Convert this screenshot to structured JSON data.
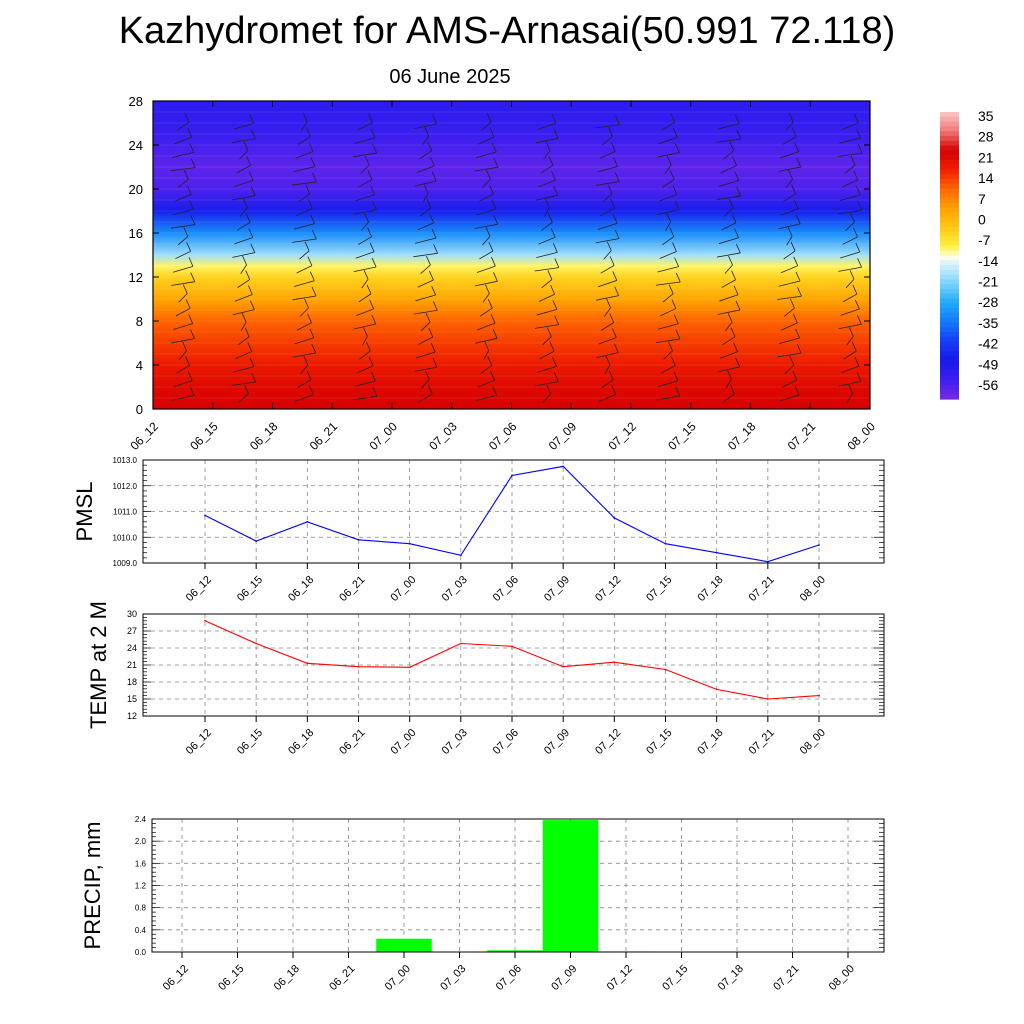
{
  "title": "Kazhydromet for AMS-Arnasai(50.991 72.118)",
  "subtitle": "06 June 2025",
  "time_labels": [
    "06_12",
    "06_15",
    "06_18",
    "06_21",
    "07_00",
    "07_03",
    "07_06",
    "07_09",
    "07_12",
    "07_15",
    "07_18",
    "07_21",
    "08_00"
  ],
  "colors": {
    "pmsl_line": "#0000ff",
    "temp_line": "#ff0000",
    "precip_bar": "#00ff00",
    "frame": "#000000",
    "grid": "#888888"
  },
  "chart_data": [
    {
      "type": "heatmap",
      "ylabel": "",
      "ylim": [
        0,
        28
      ],
      "yticks": [
        0,
        4,
        8,
        12,
        16,
        20,
        24,
        28
      ],
      "categories_ref": "time_labels",
      "colorbar": {
        "labels": [
          "35",
          "28",
          "21",
          "14",
          "7",
          "0",
          "-7",
          "-14",
          "-21",
          "-28",
          "-35",
          "-42",
          "-49",
          "-56"
        ],
        "range": [
          -63,
          42
        ]
      },
      "temperature_profile": {
        "levels": [
          0,
          2,
          4,
          6,
          8,
          10,
          12,
          13,
          14,
          16,
          18,
          20,
          22,
          24,
          26,
          28
        ],
        "values": [
          28,
          26,
          22,
          18,
          14,
          6,
          -2,
          -8,
          -18,
          -32,
          -48,
          -58,
          -60,
          -57,
          -54,
          -53
        ]
      },
      "wind_barbs": "present"
    },
    {
      "type": "line",
      "ylabel": "PMSL",
      "ylim": [
        1009.0,
        1013.0
      ],
      "yticks": [
        "1009.0",
        "1010.0",
        "1011.0",
        "1012.0",
        "1013.0"
      ],
      "categories_ref": "time_labels",
      "series": [
        {
          "values": [
            1010.85,
            1009.85,
            1010.6,
            1009.9,
            1009.75,
            1009.3,
            1012.4,
            1012.75,
            1010.75,
            1009.75,
            1009.4,
            1009.05,
            1009.7
          ]
        }
      ]
    },
    {
      "type": "line",
      "ylabel": "TEMP at 2 M",
      "ylim": [
        12,
        30
      ],
      "yticks": [
        "12",
        "15",
        "18",
        "21",
        "24",
        "27",
        "30"
      ],
      "categories_ref": "time_labels",
      "series": [
        {
          "values": [
            28.8,
            24.8,
            21.3,
            20.7,
            20.6,
            24.8,
            24.3,
            20.7,
            21.5,
            20.2,
            16.7,
            15.0,
            15.6
          ]
        }
      ]
    },
    {
      "type": "bar",
      "ylabel": "PRECIP, mm",
      "ylim": [
        0,
        2.4
      ],
      "yticks": [
        "0.0",
        "0.4",
        "0.8",
        "1.2",
        "1.6",
        "2.0",
        "2.4"
      ],
      "categories_ref": "time_labels",
      "values": [
        0,
        0,
        0,
        0,
        0.24,
        0,
        0.03,
        2.38,
        0.01,
        0,
        0,
        0,
        0
      ]
    }
  ]
}
